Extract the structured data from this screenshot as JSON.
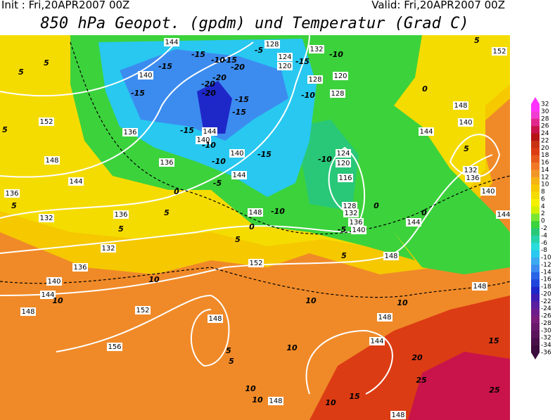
{
  "header": {
    "init": "Init : Fri,20APR2007 00Z",
    "valid": "Valid: Fri,20APR2007 00Z",
    "title": "850 hPa Geopot. (gpdm) und Temperatur (Grad C)"
  },
  "colorbar": {
    "labels": [
      32,
      30,
      28,
      26,
      24,
      22,
      20,
      18,
      16,
      14,
      12,
      10,
      8,
      6,
      4,
      2,
      0,
      -2,
      -4,
      -6,
      -8,
      -10,
      -12,
      -14,
      -16,
      -18,
      -20,
      -22,
      -24,
      -26,
      -28,
      -30,
      -32,
      -34,
      -36
    ],
    "colors": [
      "#ff33ff",
      "#f03cd0",
      "#e0288c",
      "#c8144a",
      "#b41414",
      "#c83214",
      "#dc3c14",
      "#e65a1e",
      "#f07828",
      "#f09628",
      "#f5b414",
      "#f5c800",
      "#f5dc00",
      "#f5f000",
      "#d2f000",
      "#7ae632",
      "#3cd23c",
      "#28c878",
      "#28d2aa",
      "#28dcdc",
      "#28c8f0",
      "#3caaf0",
      "#3c8cf0",
      "#2864e6",
      "#1e46dc",
      "#1e28c8",
      "#3c1eb4",
      "#5a1ea0",
      "#6e1e8c",
      "#7a1e7a",
      "#6a1a6a",
      "#5a145a",
      "#4a104a",
      "#3c0c3c"
    ]
  },
  "map": {
    "geopotential_labels": [
      144,
      140,
      136,
      144,
      140,
      136,
      140,
      144,
      148,
      152,
      148,
      152,
      156,
      148,
      144,
      140,
      136,
      132,
      136,
      132,
      136,
      144,
      148,
      152,
      128,
      132,
      124,
      120,
      128,
      128,
      120,
      124,
      120,
      116,
      128,
      132,
      136,
      140,
      148,
      144,
      144,
      148,
      140,
      132,
      136,
      140,
      144,
      152,
      148,
      148,
      144,
      148,
      148
    ],
    "temperature_labels": [
      -15,
      -15,
      -15,
      -20,
      -20,
      -20,
      -10,
      -15,
      -20,
      -5,
      -15,
      -15,
      -15,
      -10,
      -10,
      -15,
      -10,
      -15,
      -10,
      -10,
      -5,
      -5,
      0,
      0,
      0,
      0,
      0,
      -10,
      5,
      5,
      5,
      5,
      5,
      5,
      5,
      5,
      5,
      5,
      10,
      10,
      10,
      10,
      10,
      10,
      10,
      15,
      15,
      20,
      25,
      25,
      5,
      5,
      10
    ]
  }
}
